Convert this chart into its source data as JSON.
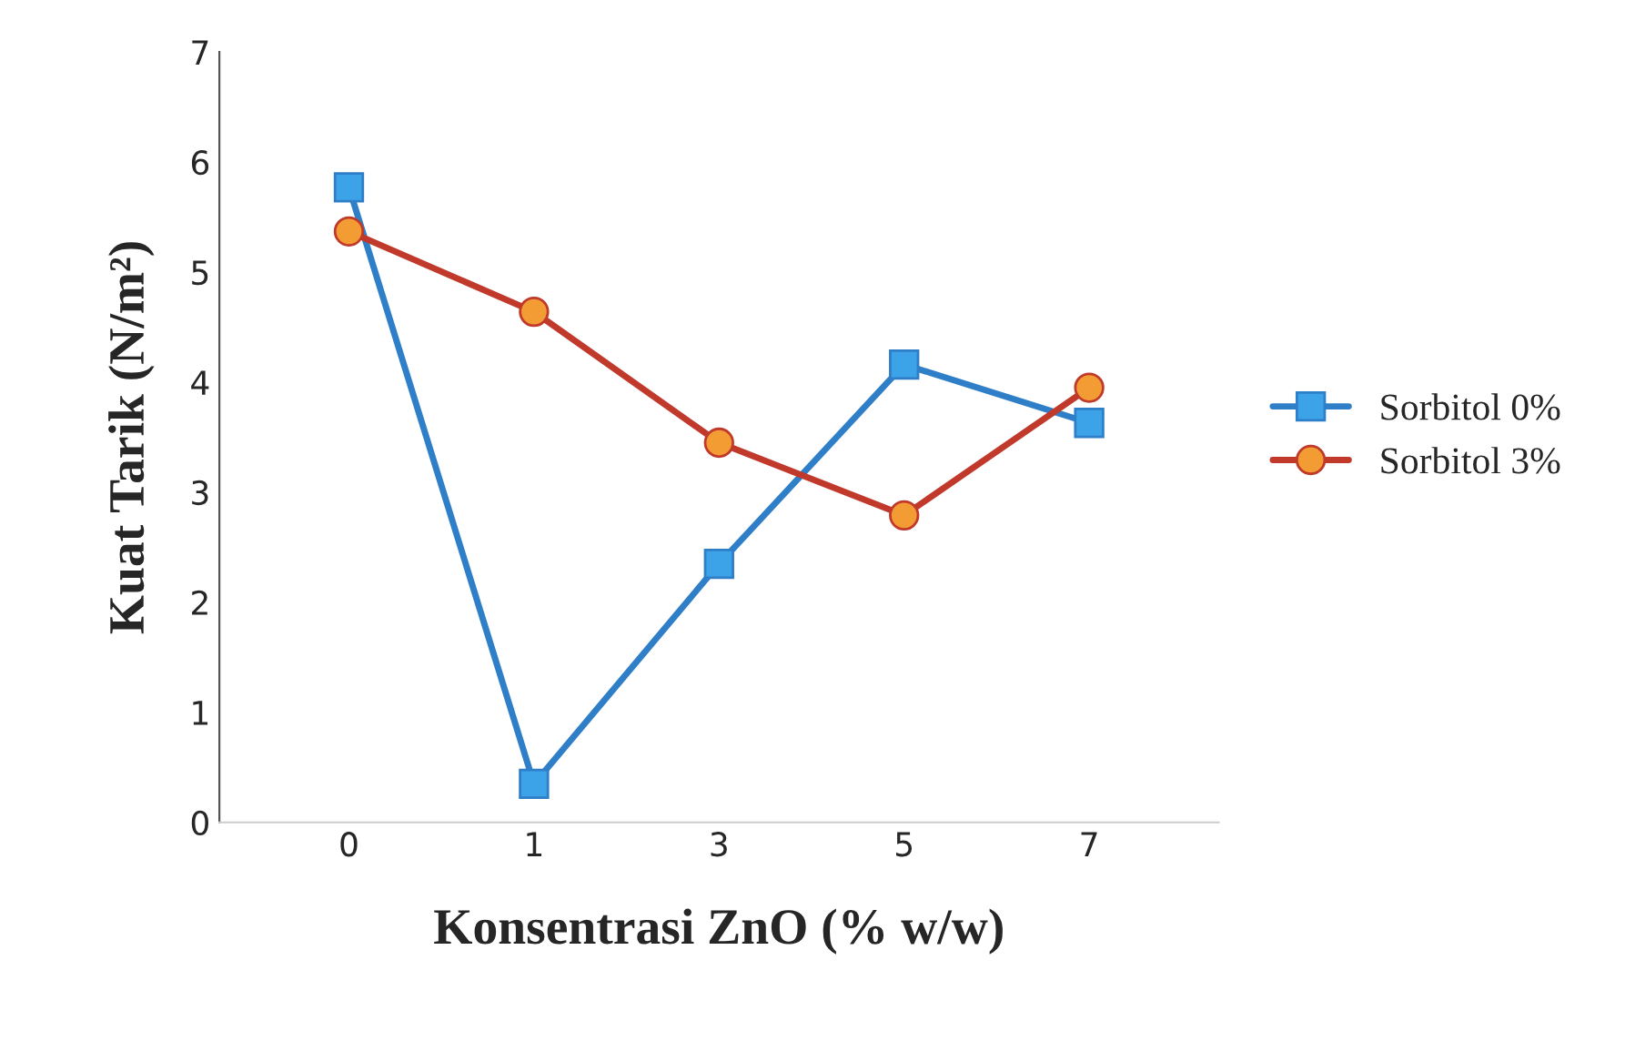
{
  "chart_data": {
    "type": "line",
    "xlabel": "Konsentrasi ZnO (% w/w)",
    "ylabel": "Kuat Tarik (N/m²)",
    "categories": [
      "0",
      "1",
      "3",
      "5",
      "7"
    ],
    "series": [
      {
        "name": "Sorbitol 0%",
        "color": "#2f7fc8",
        "marker": "square",
        "values": [
          5.77,
          0.35,
          2.35,
          4.16,
          3.63
        ]
      },
      {
        "name": "Sorbitol 3%",
        "color": "#c0392b",
        "marker": "circle",
        "values": [
          5.37,
          4.64,
          3.45,
          2.79,
          3.95
        ]
      }
    ],
    "ylim": [
      0,
      7
    ],
    "yticks": [
      0,
      1,
      2,
      3,
      4,
      5,
      6,
      7
    ],
    "grid": false,
    "legend": "right"
  }
}
